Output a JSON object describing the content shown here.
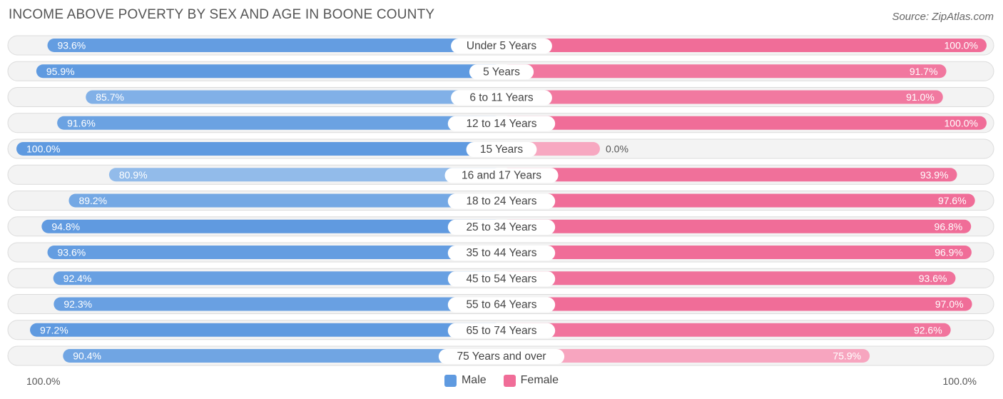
{
  "chart_data": {
    "type": "bar",
    "orientation": "horizontal-diverging",
    "title": "INCOME ABOVE POVERTY BY SEX AND AGE IN BOONE COUNTY",
    "source": "Source: ZipAtlas.com",
    "categories": [
      "Under 5 Years",
      "5 Years",
      "6 to 11 Years",
      "12 to 14 Years",
      "15 Years",
      "16 and 17 Years",
      "18 to 24 Years",
      "25 to 34 Years",
      "35 to 44 Years",
      "45 to 54 Years",
      "55 to 64 Years",
      "65 to 74 Years",
      "75 Years and over"
    ],
    "series": [
      {
        "name": "Male",
        "values": [
          93.6,
          95.9,
          85.7,
          91.6,
          100.0,
          80.9,
          89.2,
          94.8,
          93.6,
          92.4,
          92.3,
          97.2,
          90.4
        ],
        "labels": [
          "93.6%",
          "95.9%",
          "85.7%",
          "91.6%",
          "100.0%",
          "80.9%",
          "89.2%",
          "94.8%",
          "93.6%",
          "92.4%",
          "92.3%",
          "97.2%",
          "90.4%"
        ]
      },
      {
        "name": "Female",
        "values": [
          100.0,
          91.7,
          91.0,
          100.0,
          0.0,
          93.9,
          97.6,
          96.8,
          96.9,
          93.6,
          97.0,
          92.6,
          75.9
        ],
        "labels": [
          "100.0%",
          "91.7%",
          "91.0%",
          "100.0%",
          "0.0%",
          "93.9%",
          "97.6%",
          "96.8%",
          "96.9%",
          "93.6%",
          "97.0%",
          "92.6%",
          "75.9%"
        ]
      }
    ],
    "xlim": [
      0,
      100
    ],
    "axis_left_label": "100.0%",
    "axis_right_label": "100.0%",
    "legend": [
      "Male",
      "Female"
    ],
    "colors": {
      "male_strong": "#5f9ae0",
      "male_light": "#a8c9ee",
      "female_strong": "#f06d98",
      "female_light": "#f7a8c1",
      "row_bg": "#f3f3f3",
      "row_border": "#dcdcdc"
    }
  }
}
